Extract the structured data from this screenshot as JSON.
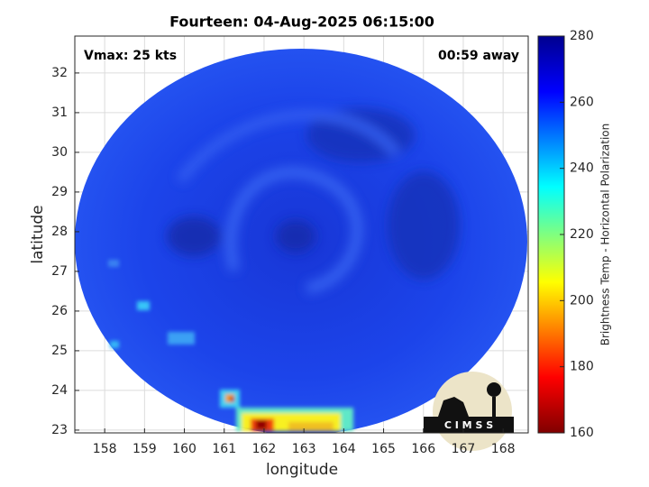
{
  "chart_data": {
    "type": "image",
    "title": "Fourteen: 04-Aug-2025 06:15:00",
    "annotations": [
      "Vmax: 25 kts",
      "00:59 away"
    ],
    "x_label": "longitude",
    "y_label": "latitude",
    "xlim": [
      157.25,
      168.63
    ],
    "ylim": [
      22.93,
      32.93
    ],
    "xticks": [
      158,
      159,
      160,
      161,
      162,
      163,
      164,
      165,
      166,
      167,
      168
    ],
    "yticks": [
      23,
      24,
      25,
      26,
      27,
      28,
      29,
      30,
      31,
      32
    ],
    "grid": true,
    "colorbar": {
      "label": "Brightness Temp - Horizontal Polarization",
      "lim": [
        160,
        280
      ],
      "ticks": [
        160,
        180,
        200,
        220,
        240,
        260,
        280
      ]
    },
    "logo_text": "C I M S S"
  }
}
